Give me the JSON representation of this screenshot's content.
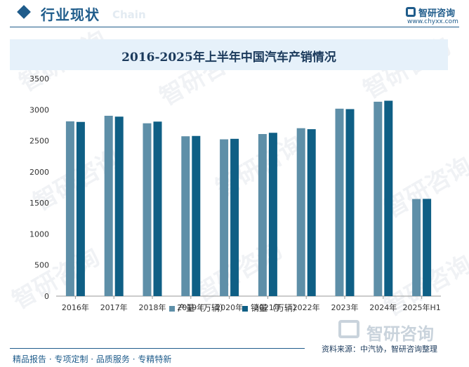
{
  "header": {
    "title": "行业现状",
    "title_en": "Chain",
    "logo_brand": "智研咨询",
    "logo_url": "www.chyxx.com"
  },
  "watermark_text": "智研咨询",
  "chart_data": {
    "type": "bar",
    "title": "2016-2025年上半年中国汽车产销情况",
    "categories": [
      "2016年",
      "2017年",
      "2018年",
      "2019年",
      "2020年",
      "2021年",
      "2022年",
      "2023年",
      "2024年",
      "2025年H1"
    ],
    "series": [
      {
        "name": "产量（万辆）",
        "color": "#5e8fa8",
        "values": [
          2812,
          2902,
          2781,
          2572,
          2523,
          2608,
          2702,
          3016,
          3128,
          1563
        ]
      },
      {
        "name": "销量（万辆）",
        "color": "#0f5f85",
        "values": [
          2803,
          2888,
          2808,
          2577,
          2531,
          2628,
          2686,
          3009,
          3144,
          1565
        ]
      }
    ],
    "ylim": [
      0,
      3500
    ],
    "yticks": [
      0,
      500,
      1000,
      1500,
      2000,
      2500,
      3000,
      3500
    ],
    "xlabel": "",
    "ylabel": "",
    "grid": false,
    "legend": "bottom"
  },
  "footer": {
    "brand": "智研咨询",
    "source": "资料来源：中汽协，智研咨询整理",
    "services": "精品报告 · 专项定制 · 品质服务 · 专精特新"
  }
}
